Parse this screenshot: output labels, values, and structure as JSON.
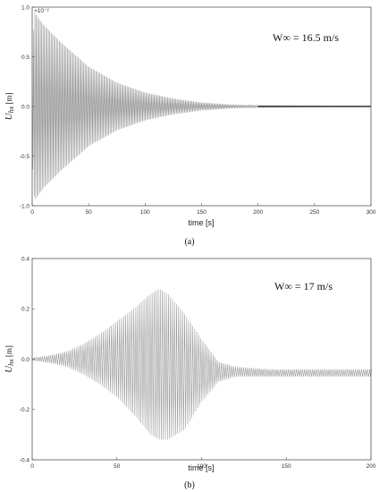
{
  "chart_data": [
    {
      "type": "line",
      "panel_label": "(a)",
      "annotation": "W∞ = 16.5 m/s",
      "ylabel": "U_hx [m]",
      "ylabel_main": "U",
      "ylabel_sub": "hx",
      "ylabel_unit": " [m]",
      "xlabel": "time [s]",
      "y_exponent_label": "×10⁻²",
      "xlim": [
        0,
        300
      ],
      "ylim": [
        -1.0,
        1.0
      ],
      "x_ticks": [
        0,
        50,
        100,
        150,
        200,
        250,
        300
      ],
      "y_ticks": [
        -1.0,
        -0.5,
        0.0,
        0.5,
        1.0
      ],
      "x_tick_labels": [
        "0",
        "50",
        "100",
        "150",
        "200",
        "250",
        "300"
      ],
      "y_tick_labels": [
        "-1.0",
        "-0.5",
        "0.0",
        "0.5",
        "1.0"
      ],
      "series": [
        {
          "color": "#9a9a9a",
          "envelope": {
            "x": [
              0,
              2,
              10,
              25,
              50,
              75,
              100,
              125,
              150,
              175,
              200,
              250,
              300
            ],
            "y_max": [
              0.5,
              0.95,
              0.82,
              0.65,
              0.4,
              0.24,
              0.14,
              0.08,
              0.04,
              0.02,
              0.01,
              0.005,
              0.004
            ]
          },
          "oscillation_period": 1.2
        }
      ]
    },
    {
      "type": "line",
      "panel_label": "(b)",
      "annotation": "W∞ = 17 m/s",
      "ylabel": "U_hx [m]",
      "ylabel_main": "U",
      "ylabel_sub": "hx",
      "ylabel_unit": " [m]",
      "xlabel": "time [s]",
      "xlim": [
        0,
        200
      ],
      "ylim": [
        -0.4,
        0.4
      ],
      "x_ticks": [
        0,
        50,
        100,
        150,
        200
      ],
      "y_ticks": [
        -0.4,
        -0.2,
        0.0,
        0.2,
        0.4
      ],
      "x_tick_labels": [
        "0",
        "50",
        "100",
        "150",
        "200"
      ],
      "y_tick_labels": [
        "-0.4",
        "-0.2",
        "0.0",
        "0.2",
        "0.4"
      ],
      "series": [
        {
          "color": "#9a9a9a",
          "envelope": {
            "x": [
              0,
              10,
              20,
              30,
              40,
              50,
              60,
              70,
              75,
              80,
              90,
              100,
              110,
              120,
              140,
              160,
              200
            ],
            "y_upper": [
              0.005,
              0.015,
              0.03,
              0.06,
              0.1,
              0.15,
              0.2,
              0.26,
              0.28,
              0.26,
              0.18,
              0.08,
              -0.01,
              -0.03,
              -0.04,
              -0.04,
              -0.04
            ],
            "y_lower": [
              -0.005,
              -0.015,
              -0.03,
              -0.06,
              -0.1,
              -0.15,
              -0.22,
              -0.3,
              -0.32,
              -0.32,
              -0.28,
              -0.17,
              -0.09,
              -0.07,
              -0.07,
              -0.07,
              -0.07
            ]
          },
          "oscillation_period": 1.2
        }
      ]
    }
  ]
}
